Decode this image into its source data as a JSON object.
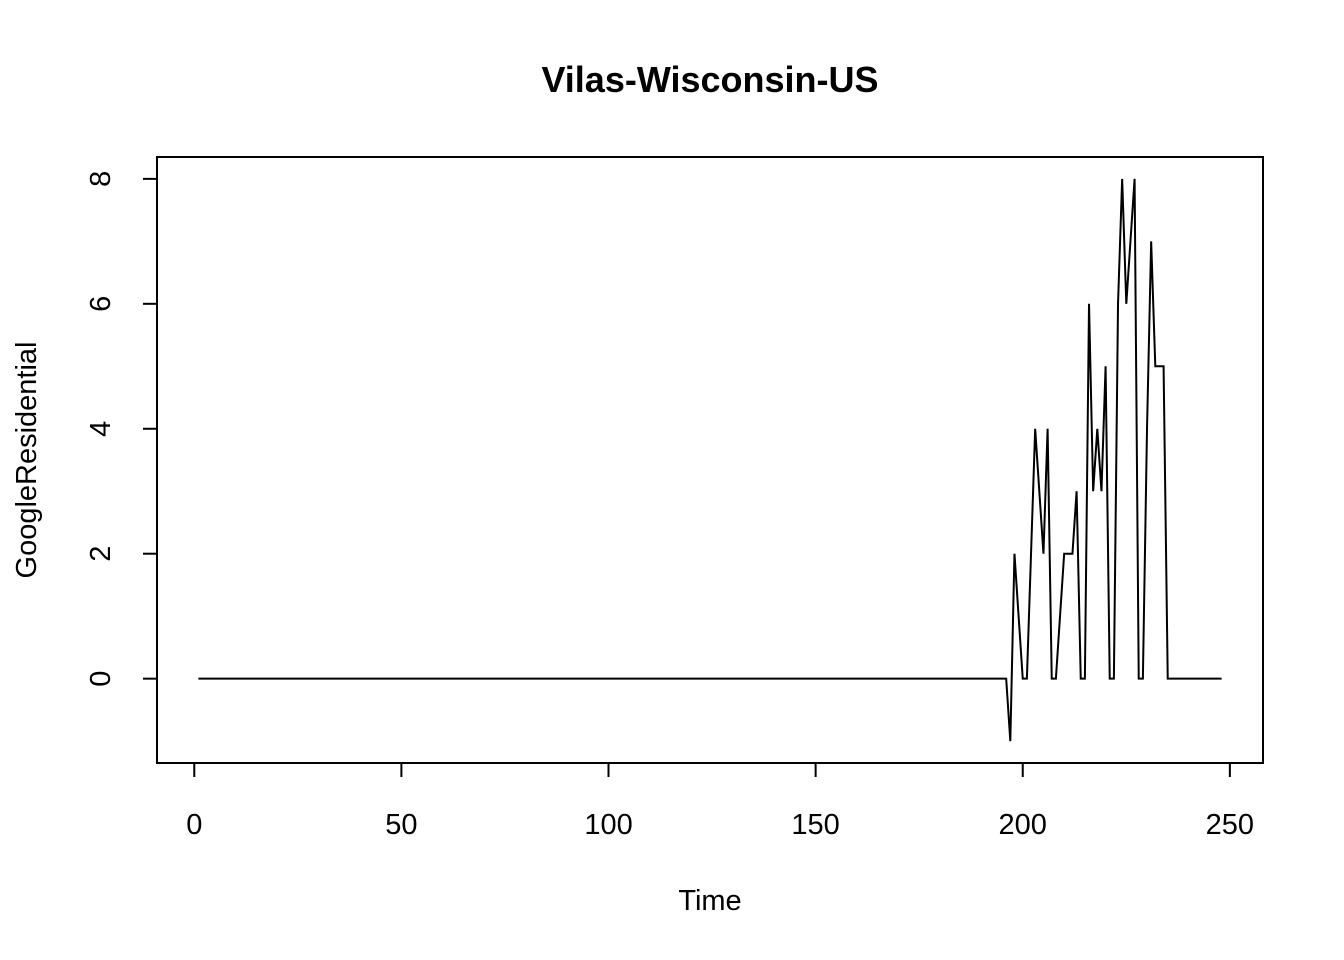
{
  "chart_data": {
    "type": "line",
    "title": "Vilas-Wisconsin-US",
    "xlabel": "Time",
    "ylabel": "GoogleResidential",
    "xlim": [
      -9,
      258
    ],
    "ylim": [
      -1.35,
      8.35
    ],
    "x_ticks": [
      0,
      50,
      100,
      150,
      200,
      250
    ],
    "y_ticks": [
      0,
      2,
      4,
      6,
      8
    ],
    "grid": false,
    "legend": "none",
    "line_color": "#000000",
    "series": [
      {
        "x": [
          1,
          196,
          197,
          198,
          199,
          200,
          201,
          202,
          203,
          204,
          205,
          206,
          207,
          208,
          209,
          210,
          211,
          212,
          213,
          214,
          215,
          216,
          217,
          218,
          219,
          220,
          221,
          222,
          223,
          224,
          225,
          226,
          227,
          228,
          229,
          230,
          231,
          232,
          233,
          234,
          235,
          236,
          248
        ],
        "values": [
          0,
          0,
          -1,
          2,
          1,
          0,
          0,
          2,
          4,
          3,
          2,
          4,
          0,
          0,
          1,
          2,
          2,
          2,
          3,
          0,
          0,
          6,
          3,
          4,
          3,
          5,
          0,
          0,
          6,
          8,
          6,
          7,
          8,
          0,
          0,
          4,
          7,
          5,
          5,
          5,
          0,
          0,
          0
        ]
      }
    ]
  }
}
